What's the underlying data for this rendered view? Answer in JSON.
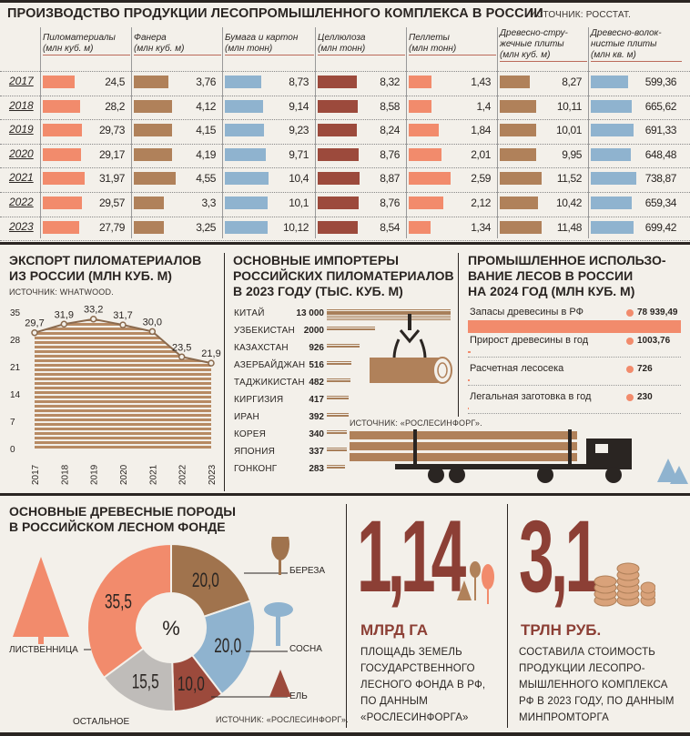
{
  "title": "ПРОИЗВОДСТВО ПРОДУКЦИИ ЛЕСОПРОМЫШЛЕННОГО КОМПЛЕКСА В РОССИИ",
  "source_top": "ИСТОЧНИК: РОССТАТ.",
  "colors": {
    "orange": "#f28b6c",
    "brown": "#b0815a",
    "blue": "#8fb3cf",
    "darkred": "#9c4a3c",
    "gray": "#bfbcb9",
    "line": "#a87f5a",
    "text": "#2a2522"
  },
  "chart_data": [
    {
      "type": "table",
      "title": "ПРОИЗВОДСТВО ПРОДУКЦИИ ЛЕСОПРОМЫШЛЕННОГО КОМПЛЕКСА В РОССИИ",
      "years": [
        "2017",
        "2018",
        "2019",
        "2020",
        "2021",
        "2022",
        "2023"
      ],
      "series": [
        {
          "name": "Пиломатериалы (млн куб. м)",
          "labels": [
            "24,5",
            "28,2",
            "29,73",
            "29,17",
            "31,97",
            "29,57",
            "27,79"
          ],
          "values": [
            24.5,
            28.2,
            29.73,
            29.17,
            31.97,
            29.57,
            27.79
          ],
          "color": "#f28b6c"
        },
        {
          "name": "Фанера (млн куб. м)",
          "labels": [
            "3,76",
            "4,12",
            "4,15",
            "4,19",
            "4,55",
            "3,3",
            "3,25"
          ],
          "values": [
            3.76,
            4.12,
            4.15,
            4.19,
            4.55,
            3.3,
            3.25
          ],
          "color": "#b0815a"
        },
        {
          "name": "Бумага и картон (млн тонн)",
          "labels": [
            "8,73",
            "9,14",
            "9,23",
            "9,71",
            "10,4",
            "10,1",
            "10,12"
          ],
          "values": [
            8.73,
            9.14,
            9.23,
            9.71,
            10.4,
            10.1,
            10.12
          ],
          "color": "#8fb3cf"
        },
        {
          "name": "Целлюлоза (млн тонн)",
          "labels": [
            "8,32",
            "8,58",
            "8,24",
            "8,76",
            "8,87",
            "8,76",
            "8,54"
          ],
          "values": [
            8.32,
            8.58,
            8.24,
            8.76,
            8.87,
            8.76,
            8.54
          ],
          "color": "#9c4a3c"
        },
        {
          "name": "Пеллеты (млн тонн)",
          "labels": [
            "1,43",
            "1,4",
            "1,84",
            "2,01",
            "2,59",
            "2,12",
            "1,34"
          ],
          "values": [
            1.43,
            1.4,
            1.84,
            2.01,
            2.59,
            2.12,
            1.34
          ],
          "color": "#f28b6c"
        },
        {
          "name": "Древесно-стружечные плиты (млн куб. м)",
          "labels": [
            "8,27",
            "10,11",
            "10,01",
            "9,95",
            "11,52",
            "10,42",
            "11,48"
          ],
          "values": [
            8.27,
            10.11,
            10.01,
            9.95,
            11.52,
            10.42,
            11.48
          ],
          "color": "#b0815a"
        },
        {
          "name": "Древесно-волокнистые плиты (млн кв. м)",
          "labels": [
            "599,36",
            "665,62",
            "691,33",
            "648,48",
            "738,87",
            "659,34",
            "699,42"
          ],
          "values": [
            599.36,
            665.62,
            691.33,
            648.48,
            738.87,
            659.34,
            699.42
          ],
          "color": "#8fb3cf"
        }
      ]
    },
    {
      "type": "area",
      "title": "ЭКСПОРТ ПИЛОМАТЕРИАЛОВ ИЗ РОССИИ (МЛН КУБ. М)",
      "source": "ИСТОЧНИК: WHATWOOD.",
      "x": [
        "2017",
        "2018",
        "2019",
        "2020",
        "2021",
        "2022",
        "2023"
      ],
      "values": [
        29.7,
        31.9,
        33.2,
        31.7,
        30.0,
        23.5,
        21.9
      ],
      "labels": [
        "29,7",
        "31,9",
        "33,2",
        "31,7",
        "30,0",
        "23,5",
        "21,9"
      ],
      "yticks": [
        "0",
        "7",
        "14",
        "21",
        "28",
        "35"
      ],
      "ylim": [
        0,
        35
      ]
    },
    {
      "type": "bar",
      "title": "ОСНОВНЫЕ ИМПОРТЕРЫ РОССИЙСКИХ ПИЛОМАТЕРИАЛОВ В 2023 ГОДУ (ТЫС. КУБ. М)",
      "categories": [
        "КИТАЙ",
        "УЗБЕКИСТАН",
        "КАЗАХСТАН",
        "АЗЕРБАЙДЖАН",
        "ТАДЖИКИСТАН",
        "КИРГИЗИЯ",
        "ИРАН",
        "КОРЕЯ",
        "ЯПОНИЯ",
        "ГОНКОНГ"
      ],
      "labels": [
        "13 000",
        "2000",
        "926",
        "516",
        "482",
        "417",
        "392",
        "340",
        "337",
        "283"
      ],
      "values": [
        13000,
        2000,
        926,
        516,
        482,
        417,
        392,
        340,
        337,
        283
      ],
      "source": "ИСТОЧНИК: «РОСЛЕСИНФОРГ»."
    },
    {
      "type": "bar",
      "title": "ПРОМЫШЛЕННОЕ ИСПОЛЬЗОВАНИЕ ЛЕСОВ В РОССИИ НА 2024 ГОД (МЛН КУБ. М)",
      "categories": [
        "Запасы древесины в РФ",
        "Прирост древесины в год",
        "Расчетная лесосека",
        "Легальная заготовка в год"
      ],
      "labels": [
        "78 939,49",
        "1003,76",
        "726",
        "230"
      ],
      "values": [
        78939.49,
        1003.76,
        726,
        230
      ]
    },
    {
      "type": "pie",
      "title": "ОСНОВНЫЕ ДРЕВЕСНЫЕ ПОРОДЫ В РОССИЙСКОМ ЛЕСНОМ ФОНДЕ",
      "center_label": "%",
      "categories": [
        "БЕРЕЗА",
        "СОСНА",
        "ЕЛЬ",
        "ОСТАЛЬНОЕ",
        "ЛИСТВЕННИЦА"
      ],
      "labels": [
        "20,0",
        "20,0",
        "10,0",
        "15,5",
        "35,5"
      ],
      "values": [
        20.0,
        20.0,
        10.0,
        15.5,
        35.5
      ],
      "colors": [
        "#a0734d",
        "#8fb3cf",
        "#9c4a3c",
        "#bfbcb9",
        "#f28b6c"
      ],
      "source": "ИСТОЧНИК: «РОСЛЕСИНФОРГ»."
    }
  ],
  "export": {
    "title_1": "ЭКСПОРТ ПИЛОМАТЕРИАЛОВ",
    "title_2": "ИЗ РОССИИ (МЛН КУБ. М)",
    "source": "ИСТОЧНИК: WHATWOOD."
  },
  "importers": {
    "title_1": "ОСНОВНЫЕ ИМПОРТЕРЫ",
    "title_2": "РОССИЙСКИХ ПИЛОМАТЕРИАЛОВ",
    "title_3": "В 2023 ГОДУ (ТЫС. КУБ. М)",
    "source": "ИСТОЧНИК: «РОСЛЕСИНФОРГ»."
  },
  "forest_use": {
    "title_1": "ПРОМЫШЛЕННОЕ ИСПОЛЬЗО-",
    "title_2": "ВАНИЕ ЛЕСОВ В РОССИИ",
    "title_3": "НА 2024 ГОД (МЛН КУБ. М)"
  },
  "species": {
    "title_1": "ОСНОВНЫЕ ДРЕВЕСНЫЕ ПОРОДЫ",
    "title_2": "В РОССИЙСКОМ ЛЕСНОМ ФОНДЕ",
    "source": "ИСТОЧНИК: «РОСЛЕСИНФОРГ»."
  },
  "stat1": {
    "number": "1,14",
    "unit": "МЛРД ГА",
    "desc": [
      "ПЛОЩАДЬ ЗЕМЕЛЬ",
      "ГОСУДАРСТВЕННОГО",
      "ЛЕСНОГО ФОНДА В РФ,",
      "ПО ДАННЫМ",
      "«РОСЛЕСИНФОРГА»"
    ]
  },
  "stat2": {
    "number": "3,1",
    "unit": "ТРЛН РУБ.",
    "desc": [
      "СОСТАВИЛА СТОИМОСТЬ",
      "ПРОДУКЦИИ ЛЕСОПРО-",
      "МЫШЛЕННОГО КОМПЛЕКСА",
      "РФ В 2023 ГОДУ, ПО ДАННЫМ",
      "МИНПРОМТОРГА"
    ]
  }
}
